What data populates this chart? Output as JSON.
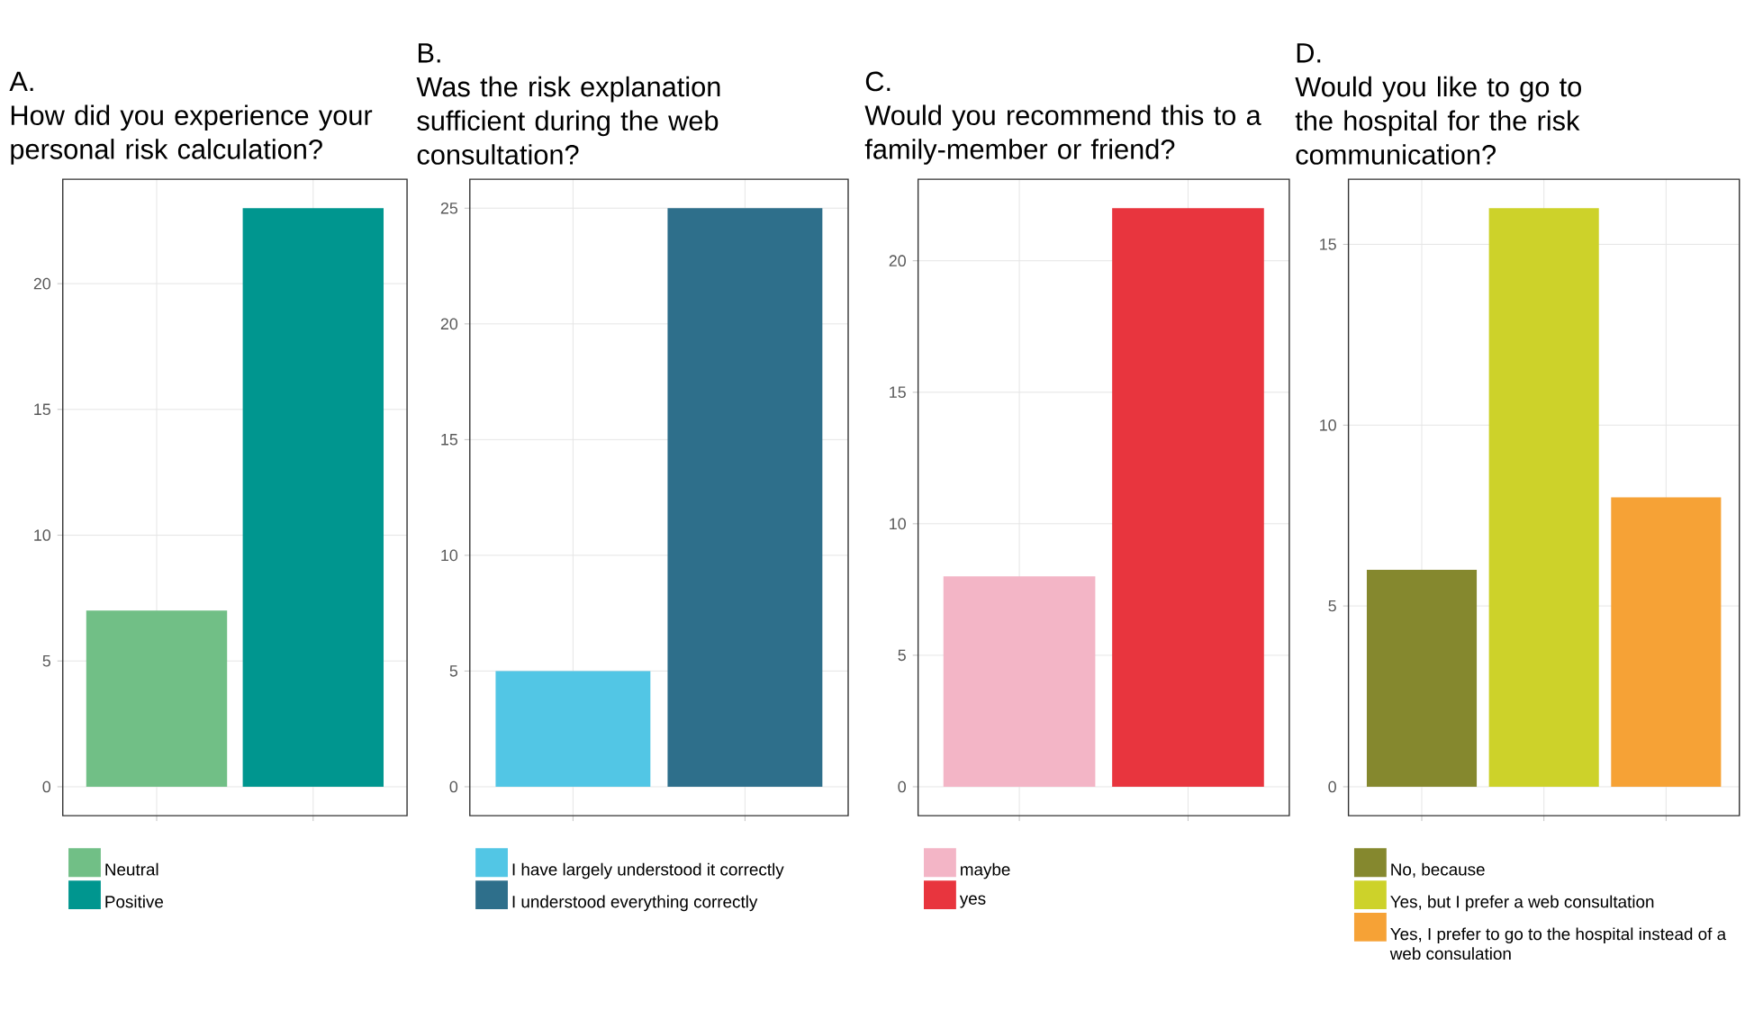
{
  "chart_data": [
    {
      "type": "bar",
      "title": "A.",
      "subtitle": "How did you experience your personal risk calculation?",
      "categories": [
        null,
        null
      ],
      "series": [
        {
          "name": "Neutral",
          "color": "#71bf86",
          "values": [
            7,
            null
          ]
        },
        {
          "name": "Positive",
          "color": "#00968f",
          "values": [
            null,
            23
          ]
        }
      ],
      "ylim": [
        -1.15,
        24.15
      ],
      "yticks": [
        0,
        5,
        10,
        15,
        20
      ],
      "grid": true,
      "legend": "bottom",
      "tick_labels": "y"
    },
    {
      "type": "bar",
      "title": "B.",
      "subtitle": "Was the risk explanation sufficient during the web consultation?",
      "categories": [
        null,
        null
      ],
      "series": [
        {
          "name": "I have largely understood it correctly",
          "color": "#52c6e5",
          "values": [
            5,
            null
          ]
        },
        {
          "name": "I understood everything correctly",
          "color": "#2e6f8b",
          "values": [
            null,
            25
          ]
        }
      ],
      "ylim": [
        -1.25,
        26.25
      ],
      "yticks": [
        0,
        5,
        10,
        15,
        20,
        25
      ],
      "grid": true,
      "legend": "bottom",
      "tick_labels": "y"
    },
    {
      "type": "bar",
      "title": "C.",
      "subtitle": "Would you recommend this to a family-member or friend?",
      "categories": [
        null,
        null
      ],
      "series": [
        {
          "name": "maybe",
          "color": "#f3b5c6",
          "values": [
            8,
            null
          ]
        },
        {
          "name": "yes",
          "color": "#e8353e",
          "values": [
            null,
            22
          ]
        }
      ],
      "ylim": [
        -1.1,
        23.1
      ],
      "yticks": [
        0,
        5,
        10,
        15,
        20
      ],
      "grid": true,
      "legend": "bottom",
      "tick_labels": "y"
    },
    {
      "type": "bar",
      "title": "D.",
      "subtitle": "Would you like to go to the hospital for the risk communication?",
      "categories": [
        null,
        null,
        null
      ],
      "series": [
        {
          "name": "No, because",
          "color": "#85882e",
          "values": [
            6,
            null,
            null
          ]
        },
        {
          "name": "Yes, but I prefer a web consultation",
          "color": "#cdd22a",
          "values": [
            null,
            16,
            null
          ]
        },
        {
          "name": "Yes, I prefer to go to the hospital instead of a web consulation",
          "color": "#f6a236",
          "values": [
            null,
            null,
            8
          ]
        }
      ],
      "ylim": [
        -0.8,
        16.8
      ],
      "yticks": [
        0,
        5,
        10,
        15
      ],
      "grid": true,
      "legend": "bottom",
      "tick_labels": "y"
    }
  ]
}
